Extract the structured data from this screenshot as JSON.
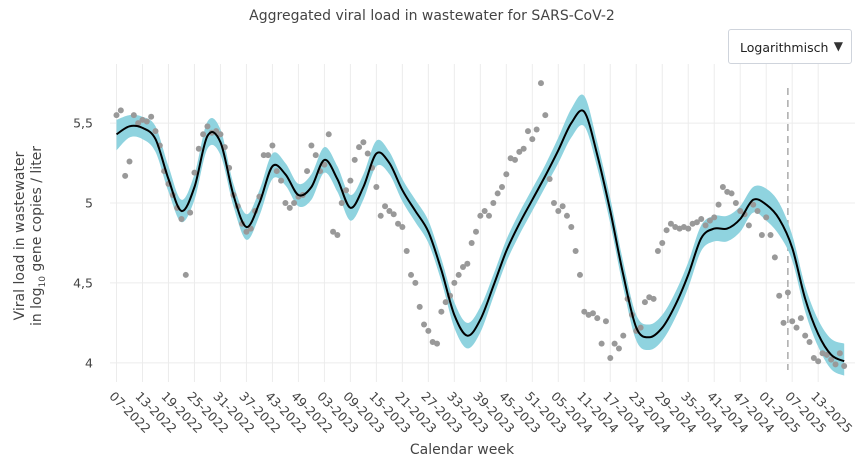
{
  "header": {
    "title": "Aggregated viral load in wastewater for SARS-CoV-2"
  },
  "scale_select": {
    "selected": "Logarithmisch",
    "caret": "▼"
  },
  "colors": {
    "band": "#8fd3df",
    "line": "#000000",
    "points": "#999999",
    "grid": "#ececec",
    "marker_line": "#aaaaaa"
  },
  "chart_data": {
    "type": "line",
    "title": "Aggregated viral load in wastewater for SARS-CoV-2",
    "xlabel": "Calendar week",
    "ylabel_line1": "Viral load in wastewater",
    "ylabel_line2_prefix": "in log",
    "ylabel_line2_sub": "10",
    "ylabel_line2_suffix": " gene copies / liter",
    "x_tick_labels": [
      "07-2022",
      "13-2022",
      "19-2022",
      "25-2022",
      "31-2022",
      "37-2022",
      "43-2022",
      "49-2022",
      "03-2023",
      "09-2023",
      "15-2023",
      "21-2023",
      "27-2023",
      "33-2023",
      "39-2023",
      "45-2023",
      "51-2023",
      "05-2024",
      "11-2024",
      "17-2024",
      "23-2024",
      "29-2024",
      "35-2024",
      "41-2024",
      "47-2024",
      "01-2025",
      "07-2025",
      "13-2025"
    ],
    "y_ticks": [
      4,
      4.5,
      5,
      5.5
    ],
    "y_tick_labels": [
      "4",
      "4,5",
      "5",
      "5,5"
    ],
    "ylim": [
      3.88,
      5.87
    ],
    "x_unit": "week index (0 = week 07-2022)",
    "xlim": [
      -1.5,
      170.5
    ],
    "grid": true,
    "vertical_marker_week": 155,
    "series": [
      {
        "name": "smoothed",
        "x": [
          0,
          3,
          6,
          9,
          12,
          15,
          18,
          21,
          24,
          27,
          30,
          33,
          36,
          39,
          42,
          45,
          48,
          51,
          54,
          57,
          60,
          63,
          66,
          69,
          72,
          75,
          78,
          81,
          84,
          87,
          90,
          93,
          96,
          99,
          102,
          105,
          108,
          111,
          114,
          117,
          120,
          123,
          126,
          129,
          132,
          135,
          138,
          141,
          144,
          147,
          150,
          153,
          156,
          159,
          162,
          165,
          168
        ],
        "values": [
          5.43,
          5.48,
          5.47,
          5.4,
          5.15,
          4.95,
          5.1,
          5.42,
          5.38,
          5.05,
          4.85,
          5.0,
          5.23,
          5.18,
          5.05,
          5.1,
          5.27,
          5.15,
          4.97,
          5.1,
          5.31,
          5.25,
          5.08,
          4.95,
          4.82,
          4.58,
          4.3,
          4.17,
          4.27,
          4.48,
          4.7,
          4.87,
          5.02,
          5.17,
          5.33,
          5.5,
          5.57,
          5.3,
          4.95,
          4.55,
          4.22,
          4.16,
          4.22,
          4.36,
          4.55,
          4.78,
          4.84,
          4.84,
          4.9,
          5.02,
          4.99,
          4.9,
          4.72,
          4.4,
          4.18,
          4.05,
          4.01
        ]
      },
      {
        "name": "band_upper",
        "x": [
          0,
          3,
          6,
          9,
          12,
          15,
          18,
          21,
          24,
          27,
          30,
          33,
          36,
          39,
          42,
          45,
          48,
          51,
          54,
          57,
          60,
          63,
          66,
          69,
          72,
          75,
          78,
          81,
          84,
          87,
          90,
          93,
          96,
          99,
          102,
          105,
          108,
          111,
          114,
          117,
          120,
          123,
          126,
          129,
          132,
          135,
          138,
          141,
          144,
          147,
          150,
          153,
          156,
          159,
          162,
          165,
          168
        ],
        "values": [
          5.52,
          5.55,
          5.54,
          5.48,
          5.23,
          5.02,
          5.18,
          5.51,
          5.46,
          5.12,
          4.93,
          5.08,
          5.31,
          5.25,
          5.12,
          5.18,
          5.35,
          5.23,
          5.05,
          5.18,
          5.39,
          5.32,
          5.15,
          5.02,
          4.89,
          4.65,
          4.38,
          4.25,
          4.35,
          4.55,
          4.77,
          4.94,
          5.09,
          5.24,
          5.41,
          5.59,
          5.67,
          5.38,
          5.03,
          4.63,
          4.3,
          4.24,
          4.3,
          4.44,
          4.63,
          4.86,
          4.92,
          4.92,
          4.98,
          5.1,
          5.09,
          5.0,
          4.8,
          4.48,
          4.27,
          4.15,
          4.12
        ]
      },
      {
        "name": "band_lower",
        "x": [
          0,
          3,
          6,
          9,
          12,
          15,
          18,
          21,
          24,
          27,
          30,
          33,
          36,
          39,
          42,
          45,
          48,
          51,
          54,
          57,
          60,
          63,
          66,
          69,
          72,
          75,
          78,
          81,
          84,
          87,
          90,
          93,
          96,
          99,
          102,
          105,
          108,
          111,
          114,
          117,
          120,
          123,
          126,
          129,
          132,
          135,
          138,
          141,
          144,
          147,
          150,
          153,
          156,
          159,
          162,
          165,
          168
        ],
        "values": [
          5.33,
          5.41,
          5.4,
          5.32,
          5.07,
          4.88,
          5.02,
          5.34,
          5.3,
          4.98,
          4.77,
          4.92,
          5.15,
          5.11,
          4.98,
          5.02,
          5.19,
          5.07,
          4.89,
          5.02,
          5.23,
          5.18,
          5.01,
          4.88,
          4.75,
          4.51,
          4.22,
          4.09,
          4.19,
          4.41,
          4.63,
          4.8,
          4.95,
          5.1,
          5.25,
          5.41,
          5.48,
          5.22,
          4.87,
          4.47,
          4.14,
          4.08,
          4.14,
          4.28,
          4.47,
          4.7,
          4.76,
          4.76,
          4.82,
          4.94,
          4.89,
          4.8,
          4.64,
          4.32,
          4.1,
          3.96,
          3.92
        ]
      },
      {
        "name": "measurements",
        "x": [
          0,
          1,
          2,
          3,
          4,
          5,
          6,
          7,
          8,
          9,
          10,
          11,
          12,
          13,
          14,
          15,
          16,
          17,
          18,
          19,
          20,
          21,
          22,
          23,
          24,
          25,
          26,
          27,
          28,
          29,
          30,
          31,
          32,
          33,
          34,
          35,
          36,
          37,
          38,
          39,
          40,
          41,
          42,
          43,
          44,
          45,
          46,
          47,
          48,
          49,
          50,
          51,
          52,
          53,
          54,
          55,
          56,
          57,
          58,
          59,
          60,
          61,
          62,
          63,
          64,
          65,
          66,
          67,
          68,
          69,
          70,
          71,
          72,
          73,
          74,
          75,
          76,
          77,
          78,
          79,
          80,
          81,
          82,
          83,
          84,
          85,
          86,
          87,
          88,
          89,
          90,
          91,
          92,
          93,
          94,
          95,
          96,
          97,
          98,
          99,
          100,
          101,
          102,
          103,
          104,
          105,
          106,
          107,
          108,
          109,
          110,
          111,
          112,
          113,
          114,
          115,
          116,
          117,
          118,
          119,
          120,
          121,
          122,
          123,
          124,
          125,
          126,
          127,
          128,
          129,
          130,
          131,
          132,
          133,
          134,
          135,
          136,
          137,
          138,
          139,
          140,
          141,
          142,
          143,
          144,
          145,
          146,
          147,
          148,
          149,
          150,
          151,
          152,
          153,
          154,
          155,
          156,
          157,
          158,
          159,
          160,
          161,
          162,
          163,
          164,
          165,
          166,
          167,
          168
        ],
        "values": [
          5.55,
          5.58,
          5.17,
          5.26,
          5.55,
          5.5,
          5.52,
          5.51,
          5.54,
          5.45,
          5.36,
          5.2,
          5.12,
          5.05,
          4.97,
          4.9,
          4.55,
          4.94,
          5.19,
          5.34,
          5.43,
          5.48,
          5.44,
          5.45,
          5.43,
          5.35,
          5.22,
          5.05,
          4.98,
          4.87,
          4.82,
          4.84,
          4.95,
          5.04,
          5.3,
          5.3,
          5.36,
          5.2,
          5.14,
          5.0,
          4.97,
          5.0,
          5.04,
          5.05,
          5.2,
          5.36,
          5.3,
          5.2,
          5.24,
          5.43,
          4.82,
          4.8,
          5.0,
          5.08,
          5.14,
          5.27,
          5.35,
          5.38,
          5.31,
          5.22,
          5.1,
          4.92,
          4.98,
          4.95,
          4.93,
          4.87,
          4.85,
          4.7,
          4.55,
          4.5,
          4.35,
          4.24,
          4.2,
          4.13,
          4.12,
          4.32,
          4.38,
          4.42,
          4.5,
          4.55,
          4.6,
          4.62,
          4.75,
          4.82,
          4.92,
          4.95,
          4.92,
          5.0,
          5.06,
          5.1,
          5.18,
          5.28,
          5.27,
          5.32,
          5.34,
          5.45,
          5.4,
          5.46,
          5.75,
          5.55,
          5.15,
          5.0,
          4.95,
          4.98,
          4.92,
          4.85,
          4.7,
          4.55,
          4.32,
          4.3,
          4.31,
          4.28,
          4.12,
          4.26,
          4.03,
          4.12,
          4.09,
          4.17,
          4.4,
          4.3,
          4.2,
          4.22,
          4.38,
          4.41,
          4.4,
          4.7,
          4.75,
          4.83,
          4.87,
          4.85,
          4.84,
          4.85,
          4.84,
          4.87,
          4.88,
          4.9,
          4.86,
          4.89,
          4.91,
          4.99,
          5.1,
          5.07,
          5.06,
          5.0,
          4.95,
          4.93,
          4.86,
          4.99,
          4.95,
          4.8,
          4.91,
          4.8,
          4.66,
          4.42,
          4.25,
          4.44,
          4.26,
          4.22,
          4.28,
          4.17,
          4.13,
          4.03,
          4.01,
          4.06,
          4.05,
          4.02,
          3.99,
          4.06,
          3.98
        ]
      }
    ]
  }
}
